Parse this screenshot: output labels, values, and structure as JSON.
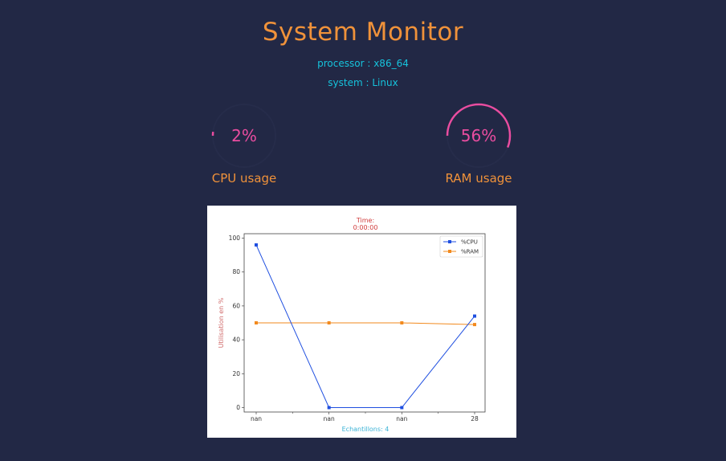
{
  "header": {
    "title": "System Monitor",
    "processor": "processor : x86_64",
    "system": "system : Linux"
  },
  "gauges": {
    "cpu": {
      "value_text": "2%",
      "value": 2,
      "label": "CPU usage"
    },
    "ram": {
      "value_text": "56%",
      "value": 56,
      "label": "RAM usage"
    }
  },
  "colors": {
    "background": "#222845",
    "accent_orange": "#f0923a",
    "accent_cyan": "#16c3dc",
    "gauge_pink": "#ea4da0",
    "cpu_series": "#1f4fe0",
    "ram_series": "#f28a1e"
  },
  "chart_data": {
    "type": "line",
    "title": "Time:\n0:00:00",
    "title_lines": [
      "Time:",
      "0:00:00"
    ],
    "ylabel": "Utilisation en %",
    "xlabel": "Echantillons: 4",
    "x": [
      "nan",
      "nan",
      "nan",
      "28"
    ],
    "ylim": [
      0,
      100
    ],
    "yticks": [
      0,
      20,
      40,
      60,
      80,
      100
    ],
    "legend_position": "top-right",
    "grid": false,
    "series": [
      {
        "name": "%CPU",
        "values": [
          96,
          0,
          0,
          54
        ],
        "color": "#1f4fe0"
      },
      {
        "name": "%RAM",
        "values": [
          50,
          50,
          50,
          49
        ],
        "color": "#f28a1e"
      }
    ]
  }
}
